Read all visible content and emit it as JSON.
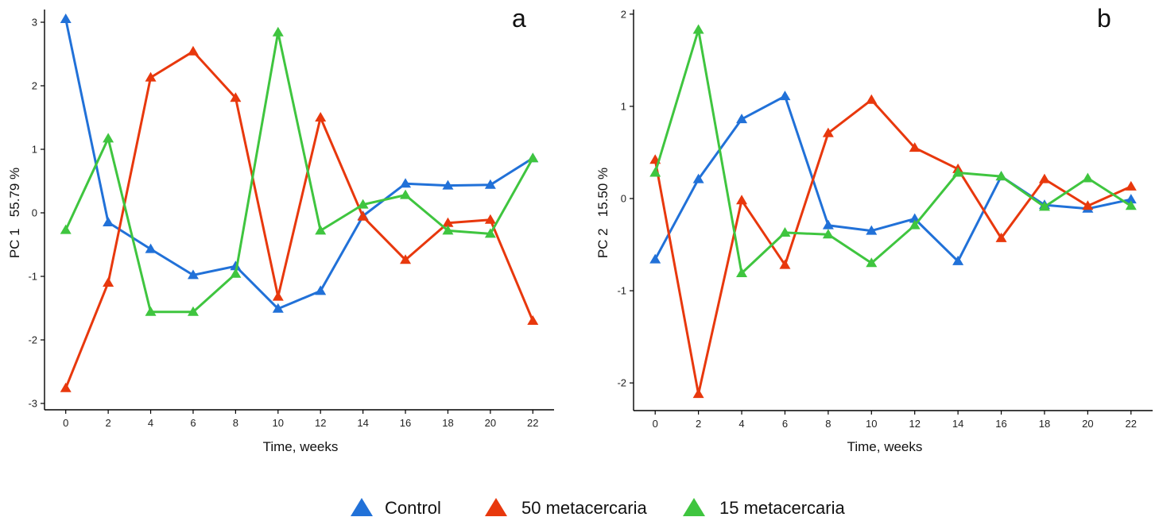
{
  "legend": {
    "placement": "bottom-center",
    "items": [
      {
        "label": "Control",
        "color": "#2171d8"
      },
      {
        "label": "50 metacercaria",
        "color": "#e8380d"
      },
      {
        "label": "15 metacercaria",
        "color": "#3fc53f"
      }
    ]
  },
  "chart_data": [
    {
      "type": "line",
      "panel": "a",
      "xlabel": "Time, weeks",
      "ylabel": "PC 1   55.79 %",
      "x": [
        0,
        2,
        4,
        6,
        8,
        10,
        12,
        14,
        16,
        18,
        20,
        22
      ],
      "xlim": [
        -1,
        23
      ],
      "ylim": [
        -3.1,
        3.2
      ],
      "xticks": [
        0,
        2,
        4,
        6,
        8,
        10,
        12,
        14,
        16,
        18,
        20,
        22
      ],
      "yticks": [
        -3,
        -2,
        -1,
        0,
        1,
        2,
        3
      ],
      "grid": false,
      "marker": "triangle",
      "series": [
        {
          "name": "Control",
          "color": "#2171d8",
          "values": [
            3.05,
            -0.15,
            -0.57,
            -0.98,
            -0.84,
            -1.51,
            -1.23,
            -0.05,
            0.46,
            0.43,
            0.44,
            0.86
          ]
        },
        {
          "name": "50 metacercaria",
          "color": "#e8380d",
          "values": [
            -2.76,
            -1.1,
            2.13,
            2.54,
            1.81,
            -1.32,
            1.5,
            -0.06,
            -0.74,
            -0.16,
            -0.11,
            -1.7
          ]
        },
        {
          "name": "15 metacercaria",
          "color": "#3fc53f",
          "values": [
            -0.27,
            1.17,
            -1.56,
            -1.56,
            -0.96,
            2.84,
            -0.28,
            0.13,
            0.28,
            -0.28,
            -0.33,
            0.86
          ]
        }
      ]
    },
    {
      "type": "line",
      "panel": "b",
      "xlabel": "Time, weeks",
      "ylabel": "PC 2   15.50 %",
      "x": [
        0,
        2,
        4,
        6,
        8,
        10,
        12,
        14,
        16,
        18,
        20,
        22
      ],
      "xlim": [
        -1,
        23
      ],
      "ylim": [
        -2.3,
        2.05
      ],
      "xticks": [
        0,
        2,
        4,
        6,
        8,
        10,
        12,
        14,
        16,
        18,
        20,
        22
      ],
      "yticks": [
        -2,
        -1,
        0,
        1,
        2
      ],
      "grid": false,
      "marker": "triangle",
      "series": [
        {
          "name": "Control",
          "color": "#2171d8",
          "values": [
            -0.66,
            0.21,
            0.86,
            1.11,
            -0.29,
            -0.35,
            -0.22,
            -0.68,
            0.24,
            -0.07,
            -0.11,
            -0.01
          ]
        },
        {
          "name": "50 metacercaria",
          "color": "#e8380d",
          "values": [
            0.42,
            -2.12,
            -0.02,
            -0.72,
            0.71,
            1.07,
            0.55,
            0.32,
            -0.43,
            0.21,
            -0.08,
            0.13
          ]
        },
        {
          "name": "15 metacercaria",
          "color": "#3fc53f",
          "values": [
            0.28,
            1.83,
            -0.81,
            -0.37,
            -0.39,
            -0.7,
            -0.29,
            0.28,
            0.24,
            -0.09,
            0.22,
            -0.08
          ]
        }
      ]
    }
  ]
}
